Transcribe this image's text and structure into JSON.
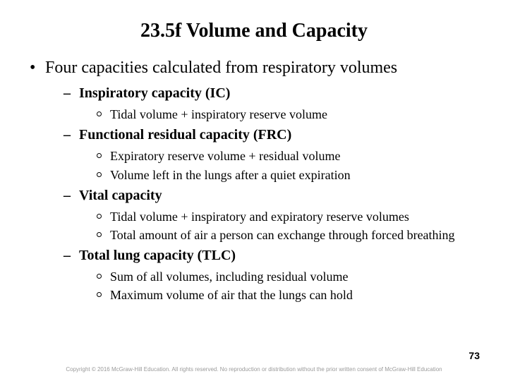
{
  "title": "23.5f Volume and Capacity",
  "level1": "Four capacities calculated from respiratory volumes",
  "items": [
    {
      "heading": "Inspiratory capacity (IC)",
      "subs": [
        "Tidal volume + inspiratory reserve volume"
      ]
    },
    {
      "heading": "Functional residual capacity (FRC)",
      "subs": [
        "Expiratory reserve volume + residual volume",
        "Volume left in the lungs after a quiet expiration"
      ]
    },
    {
      "heading": "Vital capacity",
      "subs": [
        "Tidal volume + inspiratory and expiratory reserve volumes",
        "Total amount of air a person can exchange through forced breathing"
      ]
    },
    {
      "heading": "Total lung capacity (TLC)",
      "subs": [
        "Sum of all volumes, including residual volume",
        "Maximum volume of air that the lungs can hold"
      ]
    }
  ],
  "pageNumber": "73",
  "copyright": "Copyright © 2016 McGraw-Hill Education. All rights reserved. No reproduction or distribution without the prior written consent of McGraw-Hill Education"
}
